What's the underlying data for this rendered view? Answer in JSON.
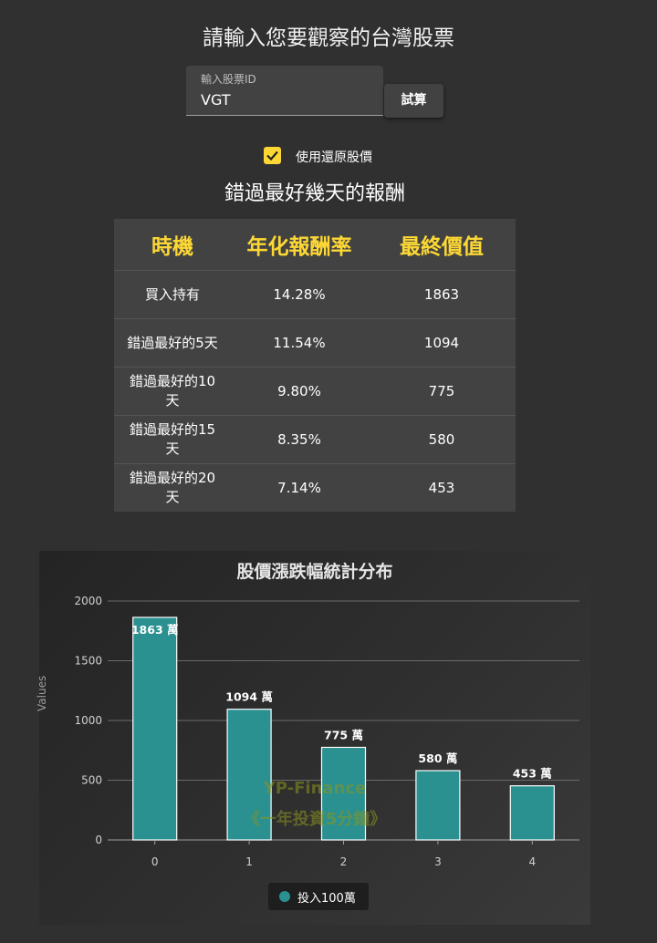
{
  "page": {
    "title": "請輸入您要觀察的台灣股票"
  },
  "stock_input": {
    "label": "輸入股票ID",
    "value": "VGT"
  },
  "calc_button": {
    "label": "試算"
  },
  "adjusted_checkbox": {
    "label": "使用還原股價",
    "checked": true,
    "color": "#fdd835"
  },
  "section": {
    "title": "錯過最好幾天的報酬"
  },
  "table": {
    "headers": [
      "時機",
      "年化報酬率",
      "最終價值"
    ],
    "rows": [
      {
        "timing": "買入持有",
        "annual_return": "14.28%",
        "final_value": "1863"
      },
      {
        "timing": "錯過最好的5天",
        "annual_return": "11.54%",
        "final_value": "1094"
      },
      {
        "timing": "錯過最好的10天",
        "annual_return": "9.80%",
        "final_value": "775"
      },
      {
        "timing": "錯過最好的15天",
        "annual_return": "8.35%",
        "final_value": "580"
      },
      {
        "timing": "錯過最好的20天",
        "annual_return": "7.14%",
        "final_value": "453"
      }
    ]
  },
  "chart_data": {
    "type": "bar",
    "title": "股價漲跌幅統計分布",
    "xlabel": "",
    "ylabel": "Values",
    "categories": [
      "0",
      "1",
      "2",
      "3",
      "4"
    ],
    "ylim": [
      0,
      2000
    ],
    "yticks": [
      "0",
      "500",
      "1000",
      "1500",
      "2000"
    ],
    "grid": true,
    "legend_position": "bottom",
    "series": [
      {
        "name": "投入100萬",
        "values": [
          1863,
          1094,
          775,
          580,
          453
        ],
        "data_labels": [
          "1863 萬",
          "1094 萬",
          "775 萬",
          "580 萬",
          "453 萬"
        ],
        "color": "#2a9090"
      }
    ],
    "watermark": [
      "YP-Finance",
      "《一年投資5分鐘》"
    ]
  }
}
